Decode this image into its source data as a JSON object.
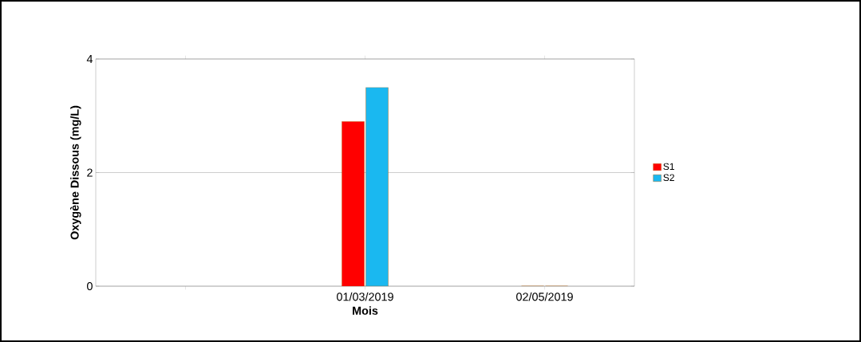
{
  "chart_data": {
    "type": "bar",
    "xlabel": "Mois",
    "ylabel": "Oxygène Dissous (mg/L)",
    "categories": [
      null,
      "01/03/2019",
      "02/05/2019"
    ],
    "series": [
      {
        "name": "S1",
        "color": "#ff0000",
        "values": [
          null,
          2.9,
          0
        ]
      },
      {
        "name": "S2",
        "color": "#1ab8f0",
        "values": [
          null,
          3.5,
          0
        ]
      }
    ],
    "ylim": [
      0,
      4
    ],
    "yticks": [
      0,
      2,
      4
    ],
    "grid": "y",
    "legend": "right"
  }
}
